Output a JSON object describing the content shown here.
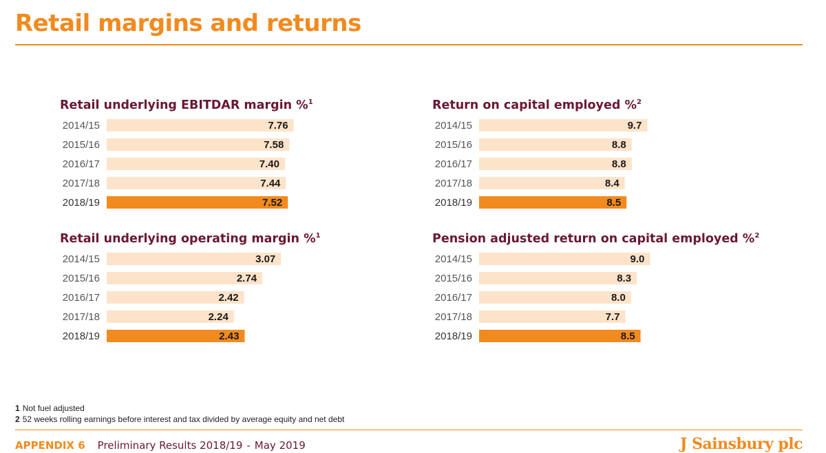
{
  "page": {
    "title": "Retail margins and returns",
    "footnotes": [
      {
        "num": "1",
        "text": "Not fuel adjusted"
      },
      {
        "num": "2",
        "text": "52 weeks rolling earnings before interest and tax divided by average equity and net debt"
      }
    ],
    "footer": {
      "appendix": "APPENDIX 6",
      "text": "Preliminary Results 2018/19",
      "separator": "-",
      "date": "May 2019"
    },
    "brand": "J Sainsbury plc",
    "colors": {
      "accent": "#f18a1f",
      "bar": "#fde3c9",
      "title": "#6b1736",
      "label": "#555555"
    }
  },
  "chart_data": [
    {
      "type": "bar",
      "orientation": "horizontal",
      "title": "Retail underlying EBITDAR margin %",
      "title_note": "1",
      "categories": [
        "2014/15",
        "2015/16",
        "2016/17",
        "2017/18",
        "2018/19"
      ],
      "values": [
        7.76,
        7.58,
        7.4,
        7.44,
        7.52
      ],
      "value_labels": [
        "7.76",
        "7.58",
        "7.40",
        "7.44",
        "7.52"
      ],
      "highlight": "2018/19"
    },
    {
      "type": "bar",
      "orientation": "horizontal",
      "title": "Return on capital employed %",
      "title_note": "2",
      "categories": [
        "2014/15",
        "2015/16",
        "2016/17",
        "2017/18",
        "2018/19"
      ],
      "values": [
        9.7,
        8.8,
        8.8,
        8.4,
        8.5
      ],
      "value_labels": [
        "9.7",
        "8.8",
        "8.8",
        "8.4",
        "8.5"
      ],
      "highlight": "2018/19"
    },
    {
      "type": "bar",
      "orientation": "horizontal",
      "title": "Retail underlying operating margin %",
      "title_note": "1",
      "categories": [
        "2014/15",
        "2015/16",
        "2016/17",
        "2017/18",
        "2018/19"
      ],
      "values": [
        3.07,
        2.74,
        2.42,
        2.24,
        2.43
      ],
      "value_labels": [
        "3.07",
        "2.74",
        "2.42",
        "2.24",
        "2.43"
      ],
      "highlight": "2018/19"
    },
    {
      "type": "bar",
      "orientation": "horizontal",
      "title": "Pension adjusted return on capital employed %",
      "title_note": "2",
      "categories": [
        "2014/15",
        "2015/16",
        "2016/17",
        "2017/18",
        "2018/19"
      ],
      "values": [
        9.0,
        8.3,
        8.0,
        7.7,
        8.5
      ],
      "value_labels": [
        "9.0",
        "8.3",
        "8.0",
        "7.7",
        "8.5"
      ],
      "highlight": "2018/19"
    }
  ]
}
